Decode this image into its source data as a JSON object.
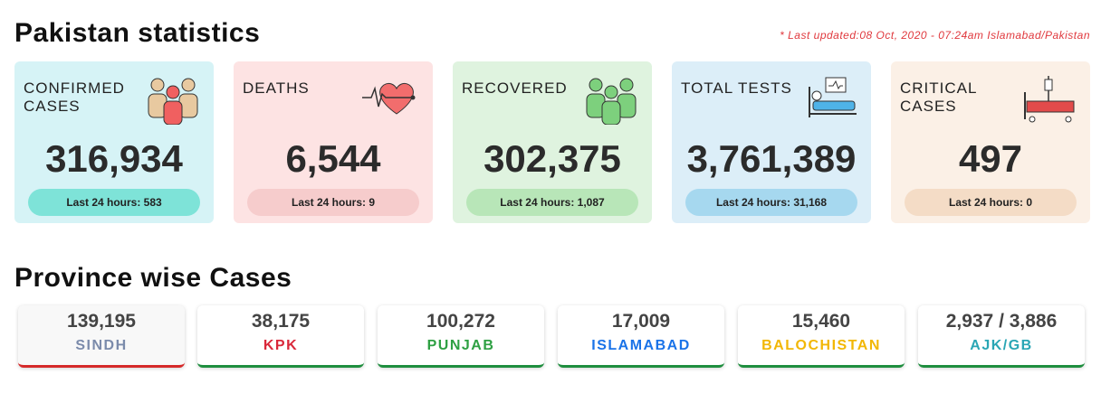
{
  "header": {
    "title": "Pakistan statistics",
    "last_updated": "* Last updated:08 Oct, 2020 - 07:24am Islamabad/Pakistan"
  },
  "stats": [
    {
      "label": "CONFIRMED CASES",
      "value": "316,934",
      "last_24": "Last 24 hours: 583"
    },
    {
      "label": "DEATHS",
      "value": "6,544",
      "last_24": "Last 24 hours: 9"
    },
    {
      "label": "RECOVERED",
      "value": "302,375",
      "last_24": "Last 24 hours: 1,087"
    },
    {
      "label": "TOTAL TESTS",
      "value": "3,761,389",
      "last_24": "Last 24 hours: 31,168"
    },
    {
      "label": "CRITICAL CASES",
      "value": "497",
      "last_24": "Last 24 hours: 0"
    }
  ],
  "provinces_title": "Province wise Cases",
  "provinces": [
    {
      "value": "139,195",
      "name": "SINDH"
    },
    {
      "value": "38,175",
      "name": "KPK"
    },
    {
      "value": "100,272",
      "name": "PUNJAB"
    },
    {
      "value": "17,009",
      "name": "ISLAMABAD"
    },
    {
      "value": "15,460",
      "name": "BALOCHISTAN"
    },
    {
      "value": "2,937 / 3,886",
      "name": "AJK/GB"
    }
  ]
}
